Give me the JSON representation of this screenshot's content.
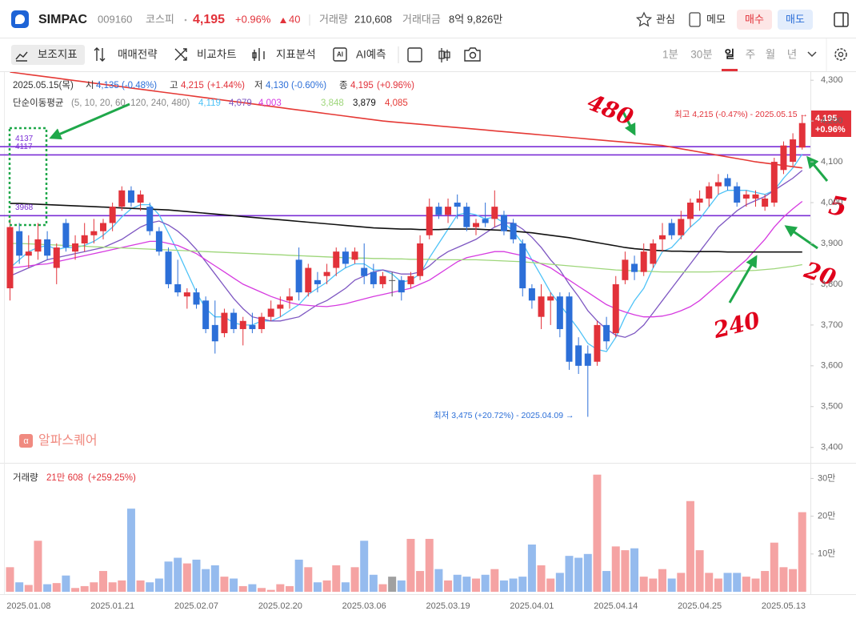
{
  "header": {
    "name": "SIMPAC",
    "code": "009160",
    "market": "코스피",
    "price": "4,195",
    "change_pct": "+0.96%",
    "change": "40",
    "volume_label": "거래량",
    "volume": "210,608",
    "amount_label": "거래대금",
    "amount": "8억 9,826만",
    "watch": "관심",
    "memo": "메모",
    "buy": "매수",
    "sell": "매도"
  },
  "toolbar": {
    "items": [
      "보조지표",
      "매매전략",
      "비교차트",
      "지표분석",
      "AI예측"
    ],
    "periods": [
      "1분",
      "30분",
      "일",
      "주",
      "월",
      "년"
    ],
    "active_period": 2
  },
  "chart_info": {
    "date": "2025.05.15(목)",
    "open_label": "시",
    "open": "4,135",
    "open_pct": "(-0.48%)",
    "high_label": "고",
    "high": "4,215",
    "high_pct": "(+1.44%)",
    "low_label": "저",
    "low": "4,130",
    "low_pct": "(-0.60%)",
    "close_label": "종",
    "close": "4,195",
    "close_pct": "(+0.96%)",
    "ma_label": "단순이동평균",
    "ma_periods": "(5, 10, 20, 60, 120, 240, 480)"
  },
  "volume_info": {
    "label": "거래량",
    "value": "21만 608",
    "pct": "(+259.25%)"
  },
  "watermark": "알파스퀘어",
  "handwritten": [
    "480",
    "5",
    "20",
    "240"
  ],
  "chart_data": {
    "type": "candlestick",
    "categories": [
      null,
      null,
      "2025.01.08",
      null,
      null,
      null,
      null,
      null,
      null,
      null,
      null,
      "2025.01.21",
      null,
      null,
      null,
      null,
      null,
      null,
      null,
      null,
      "2025.02.07",
      null,
      null,
      null,
      null,
      null,
      null,
      null,
      null,
      "2025.02.20",
      null,
      null,
      null,
      null,
      null,
      null,
      null,
      null,
      "2025.03.06",
      null,
      null,
      null,
      null,
      null,
      null,
      null,
      null,
      "2025.03.19",
      null,
      null,
      null,
      null,
      null,
      null,
      null,
      null,
      "2025.04.01",
      null,
      null,
      null,
      null,
      null,
      null,
      null,
      null,
      "2025.04.14",
      null,
      null,
      null,
      null,
      null,
      null,
      null,
      null,
      "2025.04.25",
      null,
      null,
      null,
      null,
      null,
      null,
      null,
      null,
      "2025.05.13",
      null,
      null
    ],
    "open": [
      3790,
      3930,
      3870,
      3880,
      3910,
      3840,
      3950,
      3880,
      3900,
      3920,
      3930,
      3950,
      3990,
      4030,
      4000,
      3990,
      3930,
      3880,
      3800,
      3770,
      3780,
      3760,
      3700,
      3680,
      3730,
      3690,
      3700,
      3690,
      3720,
      3740,
      3760,
      3860,
      3780,
      3810,
      3820,
      3840,
      3880,
      3860,
      3840,
      3830,
      3800,
      3810,
      3810,
      3800,
      3820,
      3920,
      3990,
      3970,
      4000,
      3990,
      3940,
      3960,
      3960,
      3970,
      3950,
      3900,
      3790,
      3720,
      3760,
      3770,
      3770,
      3650,
      3630,
      3610,
      3700,
      3680,
      3810,
      3850,
      3830,
      3850,
      3910,
      3950,
      3920,
      3960,
      4000,
      4010,
      4040,
      4060,
      4040,
      4010,
      4010,
      3990,
      4000,
      4080,
      4100,
      4135
    ],
    "high": [
      3960,
      3950,
      3920,
      3950,
      3930,
      3900,
      3960,
      3920,
      3950,
      3960,
      3960,
      4000,
      4040,
      4040,
      4030,
      4000,
      3940,
      3890,
      3860,
      3790,
      3790,
      3770,
      3760,
      3740,
      3740,
      3720,
      3730,
      3730,
      3760,
      3770,
      3790,
      3890,
      3850,
      3830,
      3850,
      3890,
      3890,
      3890,
      3900,
      3850,
      3830,
      3830,
      3820,
      3830,
      3920,
      4010,
      4000,
      4010,
      4020,
      4000,
      3960,
      4000,
      4030,
      3980,
      3960,
      3910,
      3800,
      3800,
      3780,
      3780,
      3780,
      3670,
      3650,
      3710,
      3720,
      3820,
      3880,
      3870,
      3900,
      3910,
      3950,
      3960,
      3980,
      4010,
      4030,
      4050,
      4070,
      4070,
      4050,
      4030,
      4030,
      4020,
      4110,
      4150,
      4170,
      4215
    ],
    "low": [
      3760,
      3850,
      3840,
      3860,
      3860,
      3800,
      3880,
      3860,
      3880,
      3900,
      3910,
      3930,
      3980,
      3990,
      3980,
      3920,
      3870,
      3790,
      3770,
      3740,
      3740,
      3680,
      3630,
      3670,
      3680,
      3650,
      3680,
      3680,
      3710,
      3720,
      3740,
      3760,
      3770,
      3780,
      3800,
      3820,
      3840,
      3850,
      3800,
      3790,
      3790,
      3770,
      3760,
      3790,
      3810,
      3910,
      3960,
      3950,
      3960,
      3930,
      3920,
      3940,
      3940,
      3920,
      3900,
      3770,
      3740,
      3690,
      3700,
      3670,
      3590,
      3580,
      3475,
      3600,
      3640,
      3670,
      3800,
      3810,
      3820,
      3840,
      3880,
      3910,
      3910,
      3940,
      3980,
      3990,
      4020,
      4030,
      3990,
      3990,
      3990,
      3980,
      3990,
      4070,
      4090,
      4130
    ],
    "close": [
      3940,
      3870,
      3880,
      3910,
      3870,
      3890,
      3890,
      3900,
      3920,
      3930,
      3950,
      3990,
      4030,
      4000,
      4020,
      3930,
      3880,
      3800,
      3780,
      3780,
      3750,
      3690,
      3660,
      3730,
      3690,
      3710,
      3690,
      3720,
      3740,
      3750,
      3770,
      3780,
      3840,
      3800,
      3830,
      3880,
      3850,
      3880,
      3820,
      3800,
      3820,
      3810,
      3780,
      3820,
      3900,
      3990,
      3970,
      3990,
      3990,
      3940,
      3950,
      3950,
      3990,
      3930,
      3910,
      3790,
      3760,
      3770,
      3770,
      3690,
      3610,
      3600,
      3600,
      3700,
      3660,
      3800,
      3860,
      3830,
      3880,
      3900,
      3920,
      3920,
      3960,
      4000,
      4010,
      4040,
      4050,
      4040,
      4000,
      4020,
      4020,
      4010,
      4100,
      4140,
      4155,
      4195
    ],
    "volume": [
      65000,
      25000,
      18000,
      135000,
      20000,
      23000,
      43000,
      10000,
      15000,
      25000,
      55000,
      25000,
      30000,
      220000,
      30000,
      25000,
      35000,
      80000,
      90000,
      75000,
      85000,
      60000,
      70000,
      40000,
      35000,
      15000,
      20000,
      10000,
      5000,
      20000,
      15000,
      85000,
      65000,
      25000,
      30000,
      70000,
      25000,
      65000,
      135000,
      45000,
      20000,
      40000,
      30000,
      140000,
      55000,
      140000,
      60000,
      30000,
      45000,
      40000,
      35000,
      45000,
      60000,
      30000,
      35000,
      40000,
      125000,
      70000,
      35000,
      50000,
      95000,
      90000,
      100000,
      310000,
      55000,
      120000,
      110000,
      115000,
      40000,
      35000,
      60000,
      35000,
      50000,
      240000,
      110000,
      50000,
      35000,
      50000,
      50000,
      40000,
      35000,
      55000,
      130000,
      65000,
      60000,
      210608
    ],
    "up_color": "#e2323a",
    "down_color": "#2c6fd8",
    "flat_color": "#555555",
    "volume_up_color": "#f5a3a3",
    "volume_down_color": "#95bbee",
    "volume_flat_color": "#a0a0a0",
    "ylim": [
      3370,
      4320
    ],
    "yticks": [
      {
        "value": 3400,
        "label": "3,400"
      },
      {
        "value": 3500,
        "label": "3,500"
      },
      {
        "value": 3600,
        "label": "3,600"
      },
      {
        "value": 3700,
        "label": "3,700"
      },
      {
        "value": 3800,
        "label": "3,800"
      },
      {
        "value": 3900,
        "label": "3,900"
      },
      {
        "value": 4000,
        "label": "4,000"
      },
      {
        "value": 4100,
        "label": "4,100"
      },
      {
        "value": 4200,
        "label": "4,200"
      },
      {
        "value": 4300,
        "label": "4,300"
      }
    ],
    "vlim": [
      0,
      320000
    ],
    "vticks": [
      {
        "value": 100000,
        "label": "10만"
      },
      {
        "value": 200000,
        "label": "20만"
      },
      {
        "value": 300000,
        "label": "30만"
      }
    ],
    "hlines": [
      4137,
      4117,
      3968
    ],
    "hline_color": "#7b2fd6",
    "moving_averages": [
      {
        "color": "#4fc3f7",
        "value_label": "4,119",
        "values": [
          3840,
          3860,
          3880,
          3890,
          3895,
          3885,
          3890,
          3890,
          3895,
          3905,
          3920,
          3940,
          3965,
          3985,
          3995,
          3995,
          3970,
          3925,
          3880,
          3830,
          3780,
          3740,
          3720,
          3720,
          3705,
          3700,
          3700,
          3710,
          3710,
          3720,
          3735,
          3750,
          3775,
          3790,
          3805,
          3825,
          3840,
          3850,
          3850,
          3835,
          3835,
          3825,
          3805,
          3810,
          3825,
          3865,
          3900,
          3935,
          3970,
          3975,
          3970,
          3960,
          3965,
          3950,
          3930,
          3900,
          3860,
          3820,
          3780,
          3750,
          3720,
          3690,
          3655,
          3640,
          3635,
          3670,
          3720,
          3760,
          3790,
          3840,
          3880,
          3890,
          3915,
          3940,
          3960,
          3990,
          4020,
          4030,
          4030,
          4030,
          4025,
          4020,
          4030,
          4060,
          4085,
          4119
        ]
      },
      {
        "color": "#7e57c2",
        "value_label": "4,079",
        "values": [
          3820,
          3830,
          3840,
          3850,
          3860,
          3865,
          3870,
          3875,
          3880,
          3885,
          3890,
          3900,
          3910,
          3925,
          3940,
          3950,
          3955,
          3945,
          3930,
          3910,
          3885,
          3855,
          3825,
          3795,
          3765,
          3740,
          3720,
          3715,
          3710,
          3710,
          3715,
          3720,
          3735,
          3750,
          3760,
          3775,
          3790,
          3810,
          3820,
          3830,
          3835,
          3830,
          3825,
          3825,
          3830,
          3845,
          3865,
          3880,
          3890,
          3900,
          3910,
          3925,
          3940,
          3950,
          3950,
          3935,
          3915,
          3890,
          3860,
          3835,
          3800,
          3770,
          3735,
          3710,
          3690,
          3675,
          3670,
          3680,
          3700,
          3730,
          3760,
          3790,
          3820,
          3850,
          3880,
          3910,
          3940,
          3960,
          3980,
          3995,
          4005,
          4015,
          4030,
          4045,
          4060,
          4079
        ]
      },
      {
        "color": "#d63be0",
        "value_label": "4,003",
        "values": [
          3840,
          3842,
          3845,
          3848,
          3850,
          3855,
          3860,
          3865,
          3870,
          3875,
          3880,
          3885,
          3890,
          3895,
          3900,
          3905,
          3905,
          3900,
          3895,
          3885,
          3875,
          3860,
          3845,
          3830,
          3815,
          3800,
          3790,
          3780,
          3770,
          3762,
          3755,
          3750,
          3748,
          3746,
          3745,
          3748,
          3752,
          3758,
          3764,
          3770,
          3775,
          3780,
          3785,
          3790,
          3800,
          3810,
          3825,
          3840,
          3855,
          3865,
          3870,
          3875,
          3880,
          3880,
          3875,
          3870,
          3860,
          3850,
          3840,
          3825,
          3810,
          3795,
          3780,
          3765,
          3750,
          3740,
          3732,
          3725,
          3720,
          3720,
          3722,
          3727,
          3735,
          3745,
          3760,
          3780,
          3800,
          3820,
          3840,
          3860,
          3885,
          3910,
          3940,
          3965,
          3985,
          4003
        ]
      },
      {
        "color": "#9ed67a",
        "value_label": "3,848",
        "values": [
          3900,
          3900,
          3899,
          3898,
          3897,
          3896,
          3895,
          3894,
          3893,
          3892,
          3891,
          3890,
          3889,
          3888,
          3887,
          3886,
          3885,
          3884,
          3883,
          3882,
          3881,
          3880,
          3879,
          3878,
          3877,
          3876,
          3875,
          3874,
          3873,
          3872,
          3871,
          3870,
          3869,
          3868,
          3867,
          3866,
          3865,
          3864,
          3864,
          3863,
          3863,
          3862,
          3862,
          3861,
          3861,
          3861,
          3860,
          3860,
          3860,
          3860,
          3860,
          3859,
          3858,
          3857,
          3856,
          3855,
          3853,
          3851,
          3849,
          3847,
          3845,
          3843,
          3841,
          3839,
          3837,
          3835,
          3834,
          3833,
          3832,
          3831,
          3830,
          3830,
          3830,
          3830,
          3830,
          3830,
          3831,
          3831,
          3832,
          3833,
          3834,
          3836,
          3838,
          3841,
          3844,
          3848
        ]
      },
      {
        "color": "#111111",
        "value_label": "3,879",
        "values": [
          3998,
          3998,
          3997,
          3996,
          3995,
          3994,
          3993,
          3992,
          3991,
          3990,
          3989,
          3988,
          3987,
          3986,
          3985,
          3984,
          3983,
          3982,
          3980,
          3978,
          3976,
          3974,
          3972,
          3970,
          3968,
          3966,
          3964,
          3962,
          3960,
          3958,
          3956,
          3954,
          3952,
          3950,
          3948,
          3946,
          3944,
          3942,
          3940,
          3938,
          3937,
          3936,
          3935,
          3935,
          3934,
          3934,
          3934,
          3935,
          3935,
          3935,
          3935,
          3934,
          3933,
          3932,
          3930,
          3928,
          3926,
          3923,
          3920,
          3917,
          3914,
          3910,
          3906,
          3902,
          3898,
          3894,
          3890,
          3887,
          3885,
          3883,
          3882,
          3881,
          3881,
          3880,
          3880,
          3880,
          3880,
          3879,
          3879,
          3879,
          3879,
          3879,
          3879,
          3879,
          3879,
          3879
        ]
      },
      {
        "color": "#e53935",
        "value_label": "4,085",
        "values": [
          4320,
          4317,
          4314,
          4311,
          4308,
          4305,
          4302,
          4299,
          4296,
          4293,
          4290,
          4287,
          4284,
          4281,
          4278,
          4275,
          4272,
          4269,
          4266,
          4263,
          4260,
          4257,
          4254,
          4251,
          4248,
          4245,
          4242,
          4239,
          4236,
          4233,
          4230,
          4227,
          4224,
          4221,
          4218,
          4215,
          4212,
          4209,
          4206,
          4203,
          4200,
          4198,
          4196,
          4194,
          4192,
          4190,
          4188,
          4186,
          4184,
          4182,
          4180,
          4178,
          4176,
          4174,
          4172,
          4170,
          4168,
          4166,
          4164,
          4162,
          4160,
          4158,
          4156,
          4154,
          4152,
          4150,
          4148,
          4146,
          4144,
          4142,
          4140,
          4136,
          4132,
          4128,
          4124,
          4120,
          4116,
          4112,
          4108,
          4104,
          4100,
          4097,
          4094,
          4091,
          4088,
          4085
        ]
      }
    ],
    "high_note": "최고 4,215 (-0.47%) - 2025.05.15 →",
    "low_note": "최저 3,475 (+20.72%) - 2025.04.09 →",
    "last_tag": {
      "price": "4,195",
      "change": "+0.96%"
    }
  }
}
